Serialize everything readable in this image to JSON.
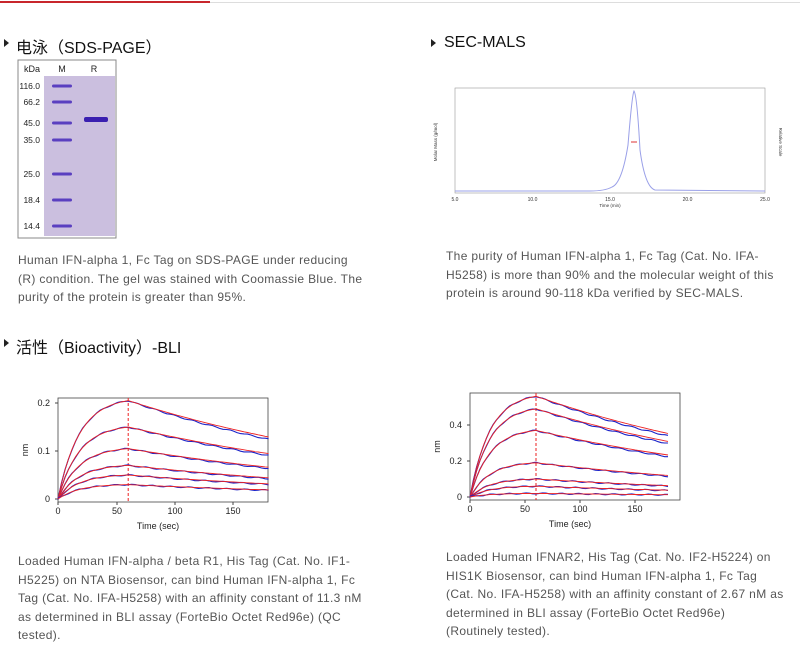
{
  "sections": [
    {
      "title": "电泳（SDS-PAGE）",
      "gel": {
        "header": [
          "kDa",
          "M",
          "R"
        ],
        "markers": [
          "116.0",
          "66.2",
          "45.0",
          "35.0",
          "25.0",
          "18.4",
          "14.4"
        ]
      },
      "caption": "Human IFN-alpha 1, Fc Tag on SDS-PAGE under reducing (R) condition. The gel was stained with Coomassie Blue. The purity of the protein is greater than 95%."
    },
    {
      "title": "SEC-MALS",
      "figure": {
        "xticks": [
          "5.0",
          "10.0",
          "15.0",
          "20.0",
          "25.0"
        ],
        "xlabel": "Time (min)",
        "ylabel": "Molar Mass (g/mol)",
        "y2label": "Relative Scale"
      },
      "caption": "The purity of Human IFN-alpha 1, Fc Tag (Cat. No. IFA-H5258) is more than 90% and the molecular weight of this protein is around 90-118 kDa verified by SEC-MALS."
    }
  ],
  "bli": {
    "title": "活性（Bioactivity）-BLI",
    "panels": [
      {
        "yticks": [
          "0.2",
          "0.1",
          "0"
        ],
        "xticks": [
          "0",
          "50",
          "100",
          "150"
        ],
        "xlabel": "Time (sec)",
        "ylabel": "nm",
        "caption": "Loaded Human IFN-alpha / beta R1, His Tag (Cat. No. IF1-H5225) on NTA Biosensor, can bind Human IFN-alpha 1, Fc Tag (Cat. No. IFA-H5258) with an affinity constant of 11.3 nM as determined in BLI assay (ForteBio Octet Red96e) (QC tested)."
      },
      {
        "yticks": [
          "0.4",
          "0.2",
          "0"
        ],
        "xticks": [
          "0",
          "50",
          "100",
          "150"
        ],
        "xlabel": "Time (sec)",
        "ylabel": "nm",
        "caption": "Loaded Human IFNAR2, His Tag (Cat. No. IF2-H5224) on HIS1K Biosensor, can bind Human IFN-alpha 1, Fc Tag (Cat. No. IFA-H5258) with an affinity constant of 2.67 nM as determined in BLI assay (ForteBio Octet Red96e) (Routinely tested)."
      }
    ]
  }
}
